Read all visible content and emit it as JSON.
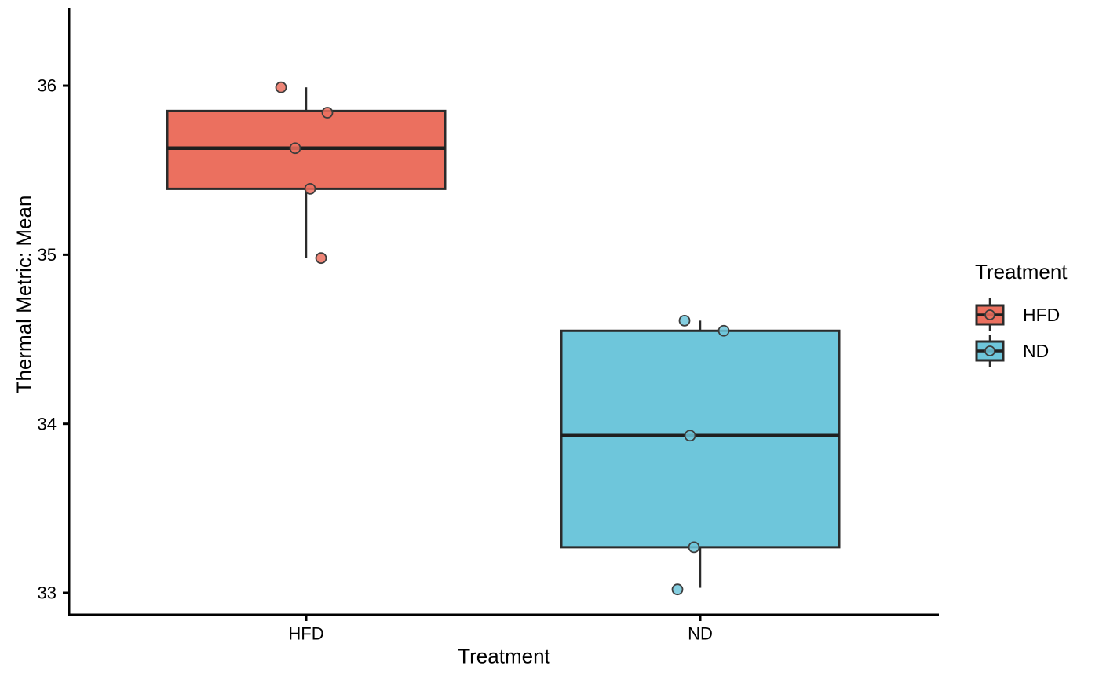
{
  "figure": {
    "background": "#FFFFFF",
    "axis_color": "#000000",
    "box_stroke": "#2B2B2B",
    "median_color": "#1F1F1F",
    "point_stroke": "#3D3D3D"
  },
  "chart_data": {
    "type": "boxplot",
    "title": "",
    "xlabel": "Treatment",
    "ylabel": "Thermal Metric: Mean",
    "categories": [
      "HFD",
      "ND"
    ],
    "y_ticks": [
      33,
      34,
      35,
      36
    ],
    "ylim": [
      32.87,
      36.46
    ],
    "grid": "off",
    "legend": {
      "title": "Treatment",
      "position": "right",
      "entries": [
        {
          "label": "HFD",
          "color": "#EB705F"
        },
        {
          "label": "ND",
          "color": "#6EC6DB"
        }
      ]
    },
    "series": [
      {
        "name": "HFD",
        "fill": "#EB705F",
        "box": {
          "whisker_low": 34.98,
          "q1": 35.39,
          "median": 35.63,
          "q3": 35.85,
          "whisker_high": 35.99
        },
        "points": [
          {
            "value": 35.99,
            "dx": -32
          },
          {
            "value": 35.84,
            "dx": 27
          },
          {
            "value": 35.63,
            "dx": -14
          },
          {
            "value": 35.39,
            "dx": 5
          },
          {
            "value": 34.98,
            "dx": 19
          }
        ]
      },
      {
        "name": "ND",
        "fill": "#6EC6DB",
        "box": {
          "whisker_low": 33.03,
          "q1": 33.27,
          "median": 33.93,
          "q3": 34.55,
          "whisker_high": 34.61
        },
        "points": [
          {
            "value": 34.61,
            "dx": -20
          },
          {
            "value": 34.55,
            "dx": 30
          },
          {
            "value": 33.93,
            "dx": -13
          },
          {
            "value": 33.27,
            "dx": -8
          },
          {
            "value": 33.02,
            "dx": -29
          }
        ]
      }
    ]
  }
}
